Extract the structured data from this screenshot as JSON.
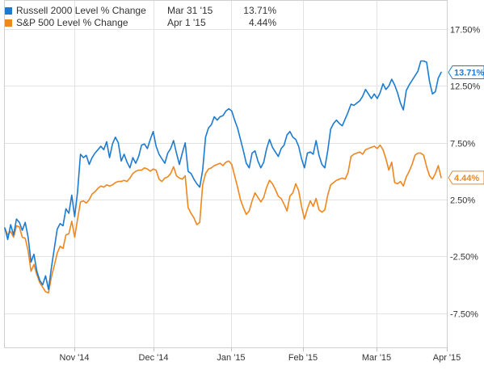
{
  "legend": {
    "items": [
      {
        "name": "Russell 2000 Level % Change",
        "date": "Mar 31 '15",
        "value": "13.71%",
        "color": "#1c7bd0"
      },
      {
        "name": "S&P 500 Level % Change",
        "date": "Apr 1 '15",
        "value": "4.44%",
        "color": "#f0861e"
      }
    ]
  },
  "chart_data": {
    "type": "line",
    "x_tick_labels": [
      "Nov '14",
      "Dec '14",
      "Jan '15",
      "Feb '15",
      "Mar '15",
      "Apr '15"
    ],
    "y_tick_labels": [
      "17.50%",
      "12.50%",
      "7.50%",
      "2.50%",
      "-2.50%",
      "-7.50%"
    ],
    "y_ticks": [
      17.5,
      12.5,
      7.5,
      2.5,
      -2.5,
      -7.5
    ],
    "ylim": [
      -10.5,
      20
    ],
    "grid": true,
    "legend_position": "top-left",
    "end_labels": [
      "13.71%",
      "4.44%"
    ],
    "series": [
      {
        "name": "Russell 2000 Level % Change",
        "color": "#1c7bd0",
        "values": [
          0.0,
          -1.0,
          0.3,
          -0.6,
          0.8,
          0.5,
          -0.2,
          0.5,
          -0.8,
          -3.0,
          -2.3,
          -3.8,
          -4.6,
          -5.0,
          -4.2,
          -5.4,
          -3.5,
          -1.8,
          -0.1,
          0.4,
          0.2,
          1.7,
          1.3,
          2.9,
          1.0,
          3.2,
          6.5,
          6.2,
          6.4,
          5.6,
          6.2,
          6.6,
          6.9,
          7.2,
          6.9,
          7.6,
          6.2,
          7.4,
          8.0,
          7.5,
          5.9,
          6.5,
          5.8,
          5.3,
          6.2,
          5.7,
          6.3,
          7.3,
          7.4,
          7.0,
          7.8,
          8.5,
          7.2,
          6.5,
          6.1,
          5.7,
          6.6,
          7.0,
          7.7,
          6.6,
          5.6,
          6.6,
          7.5,
          5.0,
          4.8,
          4.3,
          3.9,
          3.6,
          5.1,
          8.0,
          8.8,
          9.1,
          9.8,
          9.5,
          9.8,
          9.9,
          10.3,
          10.5,
          10.3,
          9.5,
          8.8,
          7.8,
          6.8,
          5.7,
          5.3,
          6.6,
          6.8,
          5.9,
          5.3,
          5.8,
          7.0,
          7.8,
          7.1,
          6.7,
          6.3,
          7.0,
          7.3,
          8.2,
          8.5,
          8.0,
          7.8,
          7.2,
          6.1,
          5.3,
          6.6,
          6.7,
          6.5,
          7.7,
          6.4,
          5.6,
          5.3,
          6.8,
          8.7,
          9.2,
          9.5,
          9.2,
          9.0,
          9.6,
          10.2,
          10.9,
          10.8,
          11.0,
          11.2,
          11.6,
          12.2,
          11.8,
          11.4,
          11.8,
          11.4,
          11.9,
          12.7,
          12.2,
          12.5,
          13.1,
          12.6,
          11.9,
          11.0,
          10.4,
          12.1,
          12.6,
          13.0,
          13.4,
          13.8,
          14.7,
          14.7,
          14.6,
          12.9,
          11.8,
          12.0,
          13.2,
          13.71
        ]
      },
      {
        "name": "S&P 500 Level % Change",
        "color": "#f0861e",
        "values": [
          0.0,
          -0.6,
          -0.3,
          -0.8,
          0.2,
          0.1,
          -0.8,
          -0.9,
          -2.0,
          -3.8,
          -3.2,
          -4.1,
          -4.8,
          -5.2,
          -5.6,
          -5.7,
          -4.3,
          -3.3,
          -2.2,
          -1.6,
          -1.8,
          -0.6,
          -0.5,
          0.6,
          -0.8,
          0.8,
          2.3,
          2.4,
          2.2,
          2.5,
          3.0,
          3.2,
          3.5,
          3.7,
          3.6,
          3.8,
          3.7,
          3.8,
          4.0,
          4.1,
          4.1,
          4.2,
          4.1,
          4.4,
          4.8,
          5.0,
          5.1,
          5.1,
          5.3,
          5.2,
          5.0,
          5.2,
          5.1,
          4.3,
          4.1,
          4.4,
          4.5,
          4.8,
          5.4,
          4.6,
          4.4,
          4.3,
          4.6,
          1.8,
          1.3,
          0.9,
          0.3,
          0.5,
          3.8,
          4.8,
          5.2,
          5.3,
          5.5,
          5.6,
          5.7,
          5.5,
          5.8,
          5.9,
          5.6,
          4.6,
          3.6,
          2.5,
          1.8,
          1.2,
          1.5,
          2.4,
          3.1,
          2.7,
          2.3,
          2.7,
          3.6,
          4.2,
          3.9,
          3.4,
          2.8,
          2.6,
          2.1,
          1.5,
          2.8,
          3.1,
          3.9,
          3.3,
          1.9,
          0.8,
          1.7,
          2.4,
          1.9,
          2.6,
          1.6,
          1.4,
          1.6,
          2.9,
          3.8,
          4.0,
          4.2,
          4.3,
          4.4,
          4.3,
          4.9,
          6.3,
          6.5,
          6.6,
          6.7,
          6.5,
          6.9,
          7.0,
          7.1,
          7.2,
          7.0,
          7.3,
          6.9,
          6.1,
          5.1,
          5.8,
          4.0,
          3.9,
          4.1,
          3.7,
          4.5,
          5.0,
          5.6,
          6.4,
          6.6,
          6.6,
          6.4,
          5.4,
          4.6,
          4.3,
          4.8,
          5.5,
          4.44
        ]
      }
    ]
  }
}
